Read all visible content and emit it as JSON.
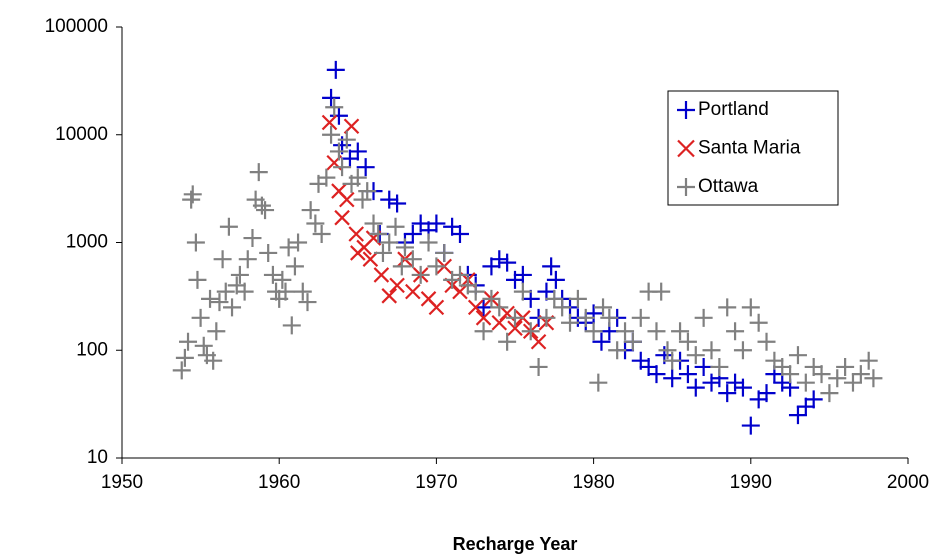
{
  "chart_data": {
    "type": "scatter",
    "xlabel": "Recharge Year",
    "xlim": [
      1950,
      2000
    ],
    "xticks": [
      1950,
      1960,
      1970,
      1980,
      1990,
      2000
    ],
    "ylim": [
      10,
      100000
    ],
    "yticks": [
      10,
      100,
      1000,
      10000,
      100000
    ],
    "ylog": true,
    "grid": false,
    "legend": "upper right",
    "series": [
      {
        "name": "Portland",
        "color": "#0000cc",
        "marker": "plus",
        "x": [
          1963.3,
          1963.6,
          1963.8,
          1964,
          1964.5,
          1965,
          1965.5,
          1966,
          1966.4,
          1967,
          1967.5,
          1968,
          1968.5,
          1969,
          1969.5,
          1970,
          1970.5,
          1971,
          1971.5,
          1972,
          1972.5,
          1973,
          1973.5,
          1974,
          1974.5,
          1975,
          1975.5,
          1976,
          1976.5,
          1977,
          1977.3,
          1977.6,
          1978,
          1978.5,
          1979,
          1979.5,
          1980,
          1980.5,
          1981,
          1981.5,
          1982,
          1982.5,
          1983,
          1983.5,
          1984,
          1984.5,
          1985,
          1985.5,
          1986,
          1986.5,
          1987,
          1987.5,
          1988,
          1988.5,
          1989,
          1989.5,
          1990,
          1990.5,
          1991,
          1991.5,
          1992,
          1992.5,
          1993,
          1993.5,
          1994
        ],
        "values": [
          22000,
          40000,
          15000,
          8000,
          6000,
          7000,
          5000,
          3000,
          1200,
          2500,
          2300,
          1000,
          1200,
          1500,
          1300,
          1500,
          800,
          1400,
          1200,
          500,
          400,
          250,
          600,
          700,
          650,
          450,
          500,
          300,
          200,
          350,
          600,
          450,
          300,
          250,
          200,
          180,
          220,
          120,
          150,
          200,
          100,
          120,
          80,
          70,
          60,
          90,
          55,
          80,
          60,
          45,
          70,
          50,
          55,
          40,
          50,
          45,
          20,
          35,
          40,
          60,
          50,
          45,
          25,
          30,
          35
        ]
      },
      {
        "name": "Santa Maria",
        "color": "#dd2222",
        "marker": "cross",
        "x": [
          1963.2,
          1963.5,
          1963.8,
          1964,
          1964.3,
          1964.6,
          1964.9,
          1965,
          1965.4,
          1965.8,
          1966,
          1966.5,
          1967,
          1967.5,
          1968,
          1968.5,
          1969,
          1969.5,
          1970,
          1970.5,
          1971,
          1971.5,
          1972,
          1972.5,
          1973,
          1973.5,
          1974,
          1974.5,
          1975,
          1975.5,
          1976,
          1976.5,
          1977
        ],
        "values": [
          13000,
          5500,
          3000,
          1700,
          2500,
          12000,
          1200,
          800,
          900,
          700,
          1100,
          500,
          320,
          400,
          700,
          350,
          500,
          300,
          250,
          600,
          400,
          350,
          450,
          250,
          200,
          300,
          180,
          220,
          160,
          200,
          150,
          120,
          180
        ]
      },
      {
        "name": "Ottawa",
        "color": "#808080",
        "marker": "plus",
        "x": [
          1953.8,
          1954,
          1954.2,
          1954.4,
          1954.5,
          1954.7,
          1954.8,
          1955,
          1955.2,
          1955.4,
          1955.6,
          1955.8,
          1956,
          1956.2,
          1956.4,
          1956.6,
          1956.8,
          1957,
          1957.3,
          1957.5,
          1957.8,
          1958,
          1958.3,
          1958.5,
          1958.7,
          1958.9,
          1959.1,
          1959.3,
          1959.6,
          1959.8,
          1960,
          1960.2,
          1960.4,
          1960.6,
          1960.8,
          1961,
          1961.2,
          1961.5,
          1961.8,
          1962,
          1962.3,
          1962.5,
          1962.7,
          1963,
          1963.3,
          1963.5,
          1963.8,
          1964,
          1964.3,
          1964.6,
          1965,
          1965.3,
          1965.6,
          1966,
          1966.3,
          1966.6,
          1967,
          1967.4,
          1967.8,
          1968,
          1968.5,
          1969,
          1969.5,
          1970,
          1970.5,
          1971,
          1971.5,
          1972,
          1972.5,
          1973,
          1973.5,
          1974,
          1974.5,
          1975,
          1975.5,
          1976,
          1976.5,
          1977,
          1977.5,
          1978,
          1978.5,
          1979,
          1979.5,
          1980,
          1980.3,
          1980.6,
          1981,
          1981.5,
          1982,
          1982.5,
          1983,
          1983.5,
          1984,
          1984.3,
          1984.7,
          1985,
          1985.5,
          1986,
          1986.5,
          1987,
          1987.5,
          1988,
          1988.5,
          1989,
          1989.5,
          1990,
          1990.5,
          1991,
          1991.5,
          1992,
          1992.5,
          1993,
          1993.5,
          1994,
          1994.5,
          1995,
          1995.5,
          1996,
          1996.5,
          1997,
          1997.5,
          1997.8
        ],
        "values": [
          65,
          85,
          120,
          2500,
          2800,
          1000,
          450,
          200,
          110,
          90,
          300,
          80,
          150,
          280,
          700,
          350,
          1400,
          250,
          400,
          500,
          350,
          700,
          1100,
          2500,
          4500,
          2200,
          2000,
          800,
          500,
          350,
          300,
          450,
          350,
          900,
          170,
          600,
          1000,
          350,
          280,
          2000,
          1500,
          3500,
          1200,
          4000,
          10000,
          18000,
          7000,
          5000,
          9000,
          3500,
          4000,
          2500,
          3000,
          1500,
          1200,
          800,
          1000,
          1400,
          600,
          900,
          700,
          500,
          1000,
          600,
          800,
          450,
          500,
          400,
          350,
          150,
          300,
          250,
          120,
          200,
          350,
          150,
          70,
          200,
          300,
          250,
          180,
          300,
          200,
          150,
          50,
          250,
          200,
          100,
          150,
          120,
          200,
          350,
          150,
          350,
          100,
          80,
          150,
          120,
          90,
          200,
          100,
          70,
          250,
          150,
          100,
          250,
          180,
          120,
          80,
          70,
          60,
          90,
          50,
          70,
          60,
          40,
          55,
          70,
          50,
          60,
          80,
          55
        ]
      }
    ]
  }
}
